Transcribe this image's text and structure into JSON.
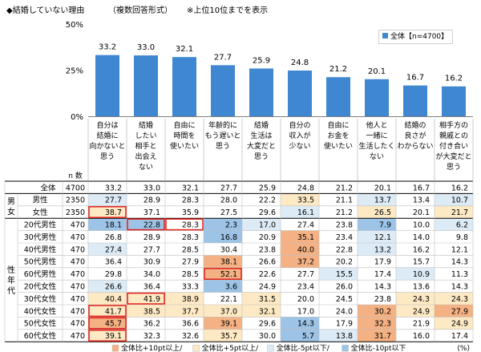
{
  "header": {
    "title": "◆結婚していない理由",
    "subtitle": "（複数回答形式）",
    "note": "※上位10位までを表示"
  },
  "colors": {
    "bar": "#3f87d1",
    "plus10": "#f4b183",
    "plus5": "#fde9c4",
    "minus5": "#ddebf7",
    "minus10": "#9dc3e6",
    "highlight_border": "#e0201b",
    "header_bg": "#ffffff",
    "grid": "#bfbfbf"
  },
  "chart_data": {
    "type": "bar",
    "title": "",
    "xlabel": "",
    "ylabel": "",
    "ylim": [
      0,
      50
    ],
    "yticks": [
      "0%",
      "25%",
      "50%"
    ],
    "grid": false,
    "legend_position": "top-right",
    "series": [
      {
        "name": "全体【n=4700】",
        "values": [
          33.2,
          33.0,
          32.1,
          27.7,
          25.9,
          24.8,
          21.2,
          20.1,
          16.7,
          16.2
        ]
      }
    ],
    "categories": [
      "自分は結婚に向かないと思う",
      "結婚したい相手と出会えない",
      "自由に時間を使いたい",
      "年齢的にもう遅いと思う",
      "結婚生活は大変だと思う",
      "自分の収入が少ない",
      "自由にお金を使いたい",
      "他人と一緒に生活したくない",
      "結婚の良さがわからない",
      "相手方の親戚との付き合いが大変だと思う"
    ],
    "category_lines": [
      [
        "自分は",
        "結婚に",
        "向かないと",
        "思う"
      ],
      [
        "結婚",
        "したい",
        "相手と",
        "出会え",
        "ない"
      ],
      [
        "自由に",
        "時間を",
        "使いたい"
      ],
      [
        "年齢的に",
        "もう遅いと",
        "思う"
      ],
      [
        "結婚",
        "生活は",
        "大変だと",
        "思う"
      ],
      [
        "自分の",
        "収入が",
        "少ない"
      ],
      [
        "自由に",
        "お金を",
        "使いたい"
      ],
      [
        "他人と",
        "一緒に",
        "生活したく",
        "ない"
      ],
      [
        "結婚の",
        "良さが",
        "わからない"
      ],
      [
        "相手方の",
        "親戚との",
        "付き合い",
        "が大変だと",
        "思う"
      ]
    ],
    "table": {
      "n_header": "n 数",
      "groups": [
        {
          "label": "",
          "label_chars": [],
          "rows": [
            {
              "label": "全体",
              "n": "4700",
              "values": [
                "33.2",
                "33.0",
                "32.1",
                "27.7",
                "25.9",
                "24.8",
                "21.2",
                "20.1",
                "16.7",
                "16.2"
              ],
              "fills": [
                "",
                "",
                "",
                "",
                "",
                "",
                "",
                "",
                "",
                ""
              ],
              "flags": [
                0,
                0,
                0,
                0,
                0,
                0,
                0,
                0,
                0,
                0
              ]
            }
          ]
        },
        {
          "label": "男女",
          "label_chars": [
            "男",
            "女"
          ],
          "rows": [
            {
              "label": "男性",
              "n": "2350",
              "values": [
                "27.7",
                "28.9",
                "28.3",
                "28.0",
                "22.2",
                "33.5",
                "21.1",
                "13.7",
                "13.4",
                "10.7"
              ],
              "fills": [
                "minus5",
                "",
                "",
                "",
                "",
                "plus5",
                "",
                "minus5",
                "",
                "minus5"
              ],
              "flags": [
                0,
                0,
                0,
                0,
                0,
                0,
                0,
                0,
                0,
                0
              ]
            },
            {
              "label": "女性",
              "n": "2350",
              "values": [
                "38.7",
                "37.1",
                "35.9",
                "27.5",
                "29.6",
                "16.1",
                "21.2",
                "26.5",
                "20.1",
                "21.7"
              ],
              "fills": [
                "plus5",
                "",
                "",
                "",
                "",
                "minus5",
                "",
                "plus5",
                "",
                "plus5"
              ],
              "flags": [
                1,
                0,
                0,
                0,
                0,
                0,
                0,
                0,
                0,
                0
              ]
            }
          ]
        },
        {
          "label": "性年代",
          "label_chars": [
            "性",
            "年",
            "代"
          ],
          "rows": [
            {
              "label": "20代男性",
              "n": "470",
              "values": [
                "18.1",
                "22.8",
                "28.3",
                "2.3",
                "17.0",
                "27.4",
                "23.8",
                "7.9",
                "10.0",
                "6.2"
              ],
              "fills": [
                "minus10",
                "minus10",
                "",
                "minus10",
                "minus5",
                "",
                "",
                "minus10",
                "",
                "minus5"
              ],
              "flags": [
                0,
                1,
                1,
                0,
                0,
                0,
                0,
                0,
                0,
                0
              ]
            },
            {
              "label": "30代男性",
              "n": "470",
              "values": [
                "26.8",
                "28.9",
                "28.3",
                "16.8",
                "20.9",
                "35.1",
                "23.4",
                "12.1",
                "14.0",
                "9.8"
              ],
              "fills": [
                "",
                "",
                "",
                "minus10",
                "",
                "plus10",
                "",
                "minus5",
                "",
                ""
              ],
              "flags": [
                0,
                0,
                0,
                0,
                0,
                0,
                0,
                0,
                0,
                0
              ]
            },
            {
              "label": "40代男性",
              "n": "470",
              "values": [
                "27.4",
                "27.7",
                "28.5",
                "30.4",
                "23.8",
                "40.0",
                "22.8",
                "13.2",
                "16.2",
                "12.1"
              ],
              "fills": [
                "minus5",
                "",
                "",
                "",
                "",
                "plus10",
                "",
                "minus5",
                "",
                ""
              ],
              "flags": [
                0,
                0,
                0,
                0,
                0,
                0,
                0,
                0,
                0,
                0
              ]
            },
            {
              "label": "50代男性",
              "n": "470",
              "values": [
                "36.4",
                "30.9",
                "27.9",
                "38.1",
                "26.6",
                "37.2",
                "20.2",
                "17.9",
                "15.7",
                "14.3"
              ],
              "fills": [
                "",
                "",
                "",
                "plus10",
                "",
                "plus10",
                "",
                "",
                "",
                ""
              ],
              "flags": [
                0,
                0,
                0,
                0,
                0,
                0,
                0,
                0,
                0,
                0
              ]
            },
            {
              "label": "60代男性",
              "n": "470",
              "values": [
                "29.8",
                "34.0",
                "28.5",
                "52.1",
                "22.6",
                "27.7",
                "15.5",
                "17.4",
                "10.9",
                "11.3"
              ],
              "fills": [
                "",
                "",
                "",
                "plus10",
                "",
                "",
                "minus5",
                "",
                "minus5",
                ""
              ],
              "flags": [
                0,
                0,
                0,
                1,
                0,
                0,
                0,
                0,
                0,
                0
              ]
            },
            {
              "label": "20代女性",
              "n": "470",
              "values": [
                "26.6",
                "36.4",
                "33.3",
                "3.6",
                "24.9",
                "23.4",
                "26.0",
                "14.3",
                "13.6",
                "14.3"
              ],
              "fills": [
                "minus5",
                "",
                "",
                "minus10",
                "",
                "",
                "",
                "",
                "",
                ""
              ],
              "flags": [
                0,
                0,
                0,
                0,
                0,
                0,
                0,
                0,
                0,
                0
              ]
            },
            {
              "label": "30代女性",
              "n": "470",
              "values": [
                "40.4",
                "41.9",
                "38.9",
                "22.1",
                "31.5",
                "20.0",
                "24.5",
                "23.8",
                "24.3",
                "24.3"
              ],
              "fills": [
                "plus5",
                "plus5",
                "plus5",
                "",
                "plus5",
                "",
                "",
                "",
                "plus5",
                "plus5"
              ],
              "flags": [
                0,
                1,
                0,
                0,
                0,
                0,
                0,
                0,
                0,
                0
              ]
            },
            {
              "label": "40代女性",
              "n": "470",
              "values": [
                "41.7",
                "38.5",
                "37.7",
                "37.0",
                "32.1",
                "17.0",
                "24.0",
                "30.2",
                "24.9",
                "27.9"
              ],
              "fills": [
                "plus5",
                "plus5",
                "plus5",
                "plus5",
                "plus5",
                "",
                "",
                "plus10",
                "plus5",
                "plus10"
              ],
              "flags": [
                1,
                0,
                0,
                0,
                0,
                0,
                0,
                0,
                0,
                0
              ]
            },
            {
              "label": "50代女性",
              "n": "470",
              "values": [
                "45.7",
                "36.2",
                "36.6",
                "39.1",
                "29.6",
                "14.3",
                "17.9",
                "32.3",
                "21.9",
                "24.9"
              ],
              "fills": [
                "plus10",
                "",
                "",
                "plus10",
                "",
                "minus10",
                "",
                "plus10",
                "",
                "plus5"
              ],
              "flags": [
                1,
                0,
                0,
                0,
                0,
                0,
                0,
                0,
                0,
                0
              ]
            },
            {
              "label": "60代女性",
              "n": "470",
              "values": [
                "39.1",
                "32.3",
                "32.6",
                "35.7",
                "30.0",
                "5.7",
                "13.8",
                "31.7",
                "16.0",
                "17.4"
              ],
              "fills": [
                "plus5",
                "",
                "",
                "plus5",
                "",
                "minus10",
                "minus5",
                "plus10",
                "",
                ""
              ],
              "flags": [
                1,
                0,
                0,
                0,
                0,
                0,
                0,
                0,
                0,
                0
              ]
            }
          ]
        }
      ]
    },
    "fill_legend": [
      {
        "key": "plus10",
        "label": "全体比+10pt以上/"
      },
      {
        "key": "plus5",
        "label": "全体比+5pt以上/"
      },
      {
        "key": "minus5",
        "label": "全体比-5pt以下/"
      },
      {
        "key": "minus10",
        "label": "全体比-10pt以下"
      }
    ],
    "unit_label": "(%)"
  }
}
